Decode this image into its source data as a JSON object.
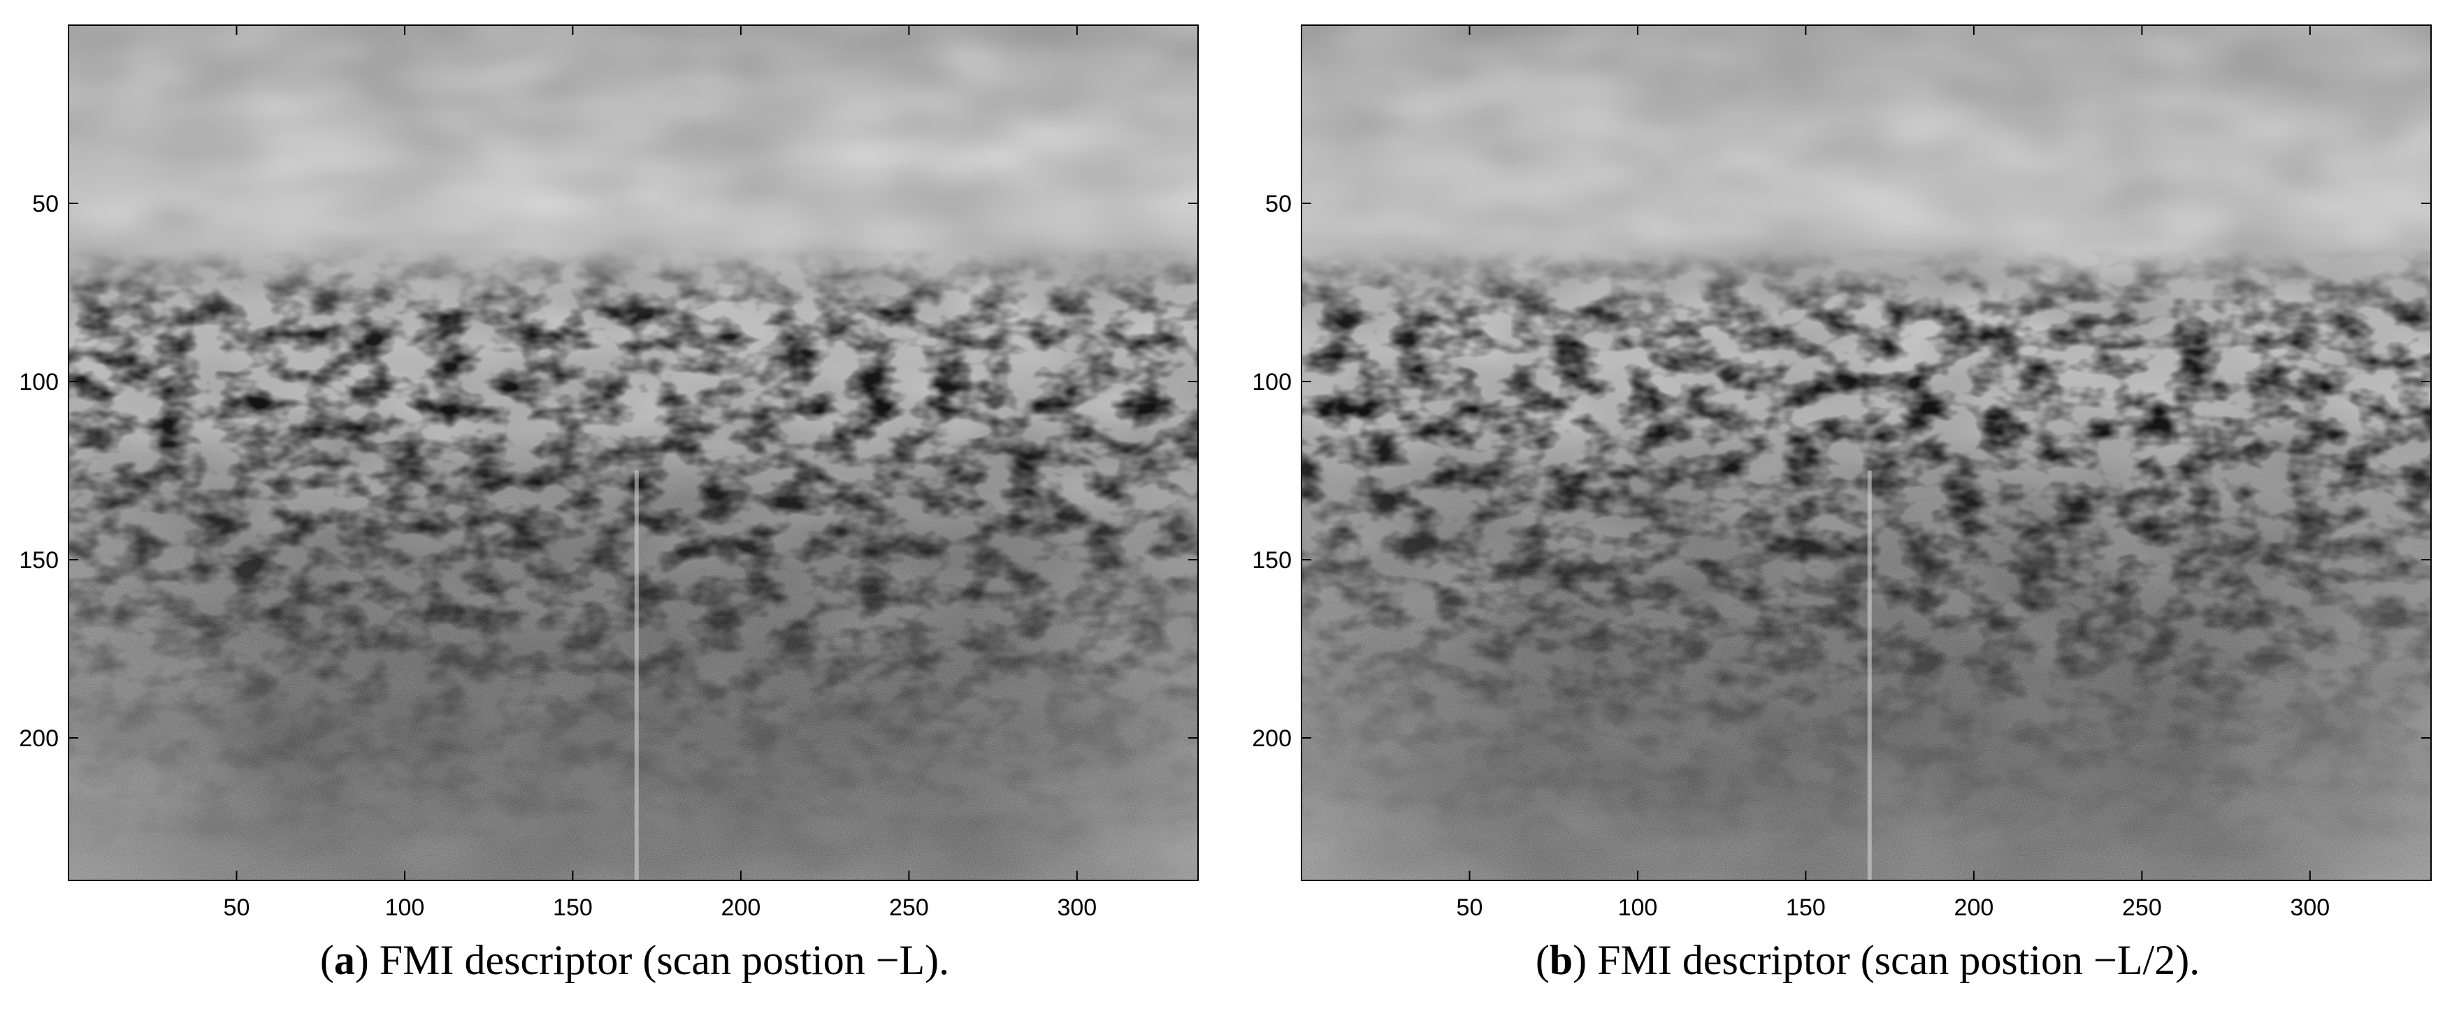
{
  "colors": {
    "background": "#ffffff",
    "axis": "#000000"
  },
  "chart_data": [
    {
      "type": "heatmap",
      "panel": "a",
      "caption_letter": "a",
      "caption_paren_open": "(",
      "caption_paren_close": ")",
      "caption_text": "FMI descriptor (scan postion −L).",
      "xlim": [
        0,
        336
      ],
      "ylim": [
        240,
        0
      ],
      "xticks": [
        50,
        100,
        150,
        200,
        250,
        300
      ],
      "yticks": [
        50,
        100,
        150,
        200
      ],
      "colormap": "gray",
      "grid": false,
      "vertical_line_x": 169
    },
    {
      "type": "heatmap",
      "panel": "b",
      "caption_letter": "b",
      "caption_paren_open": "(",
      "caption_paren_close": ")",
      "caption_text": "FMI descriptor (scan postion −L/2).",
      "xlim": [
        0,
        336
      ],
      "ylim": [
        240,
        0
      ],
      "xticks": [
        50,
        100,
        150,
        200,
        250,
        300
      ],
      "yticks": [
        50,
        100,
        150,
        200
      ],
      "colormap": "gray",
      "grid": false,
      "vertical_line_x": 169
    }
  ]
}
